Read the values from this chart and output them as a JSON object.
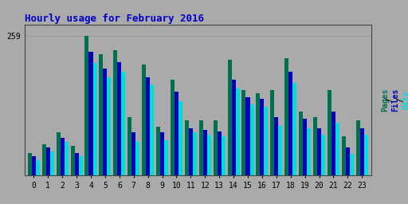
{
  "title": "Hourly usage for February 2016",
  "hours": [
    0,
    1,
    2,
    3,
    4,
    5,
    6,
    7,
    8,
    9,
    10,
    11,
    12,
    13,
    14,
    15,
    16,
    17,
    18,
    19,
    20,
    21,
    22,
    23
  ],
  "pages": [
    42,
    58,
    80,
    55,
    259,
    225,
    232,
    108,
    205,
    90,
    178,
    102,
    102,
    102,
    215,
    158,
    152,
    158,
    218,
    118,
    108,
    158,
    72,
    102
  ],
  "files": [
    35,
    52,
    70,
    42,
    230,
    198,
    210,
    80,
    182,
    80,
    155,
    88,
    85,
    82,
    178,
    145,
    142,
    108,
    192,
    105,
    88,
    118,
    52,
    88
  ],
  "hits": [
    28,
    44,
    62,
    35,
    208,
    182,
    192,
    62,
    168,
    65,
    138,
    80,
    76,
    73,
    162,
    132,
    128,
    92,
    172,
    88,
    76,
    98,
    40,
    75
  ],
  "color_pages": "#007050",
  "color_files": "#0000bb",
  "color_hits": "#00dddd",
  "background_plot": "#aaaaaa",
  "background_fig": "#aaaaaa",
  "title_color": "#0000cc",
  "ylabel_color_pages": "#007050",
  "ylabel_color_files": "#0000bb",
  "ylabel_color_hits": "#00dddd",
  "ylim": [
    0,
    280
  ],
  "bar_width": 0.28,
  "grid_color": "#999999"
}
